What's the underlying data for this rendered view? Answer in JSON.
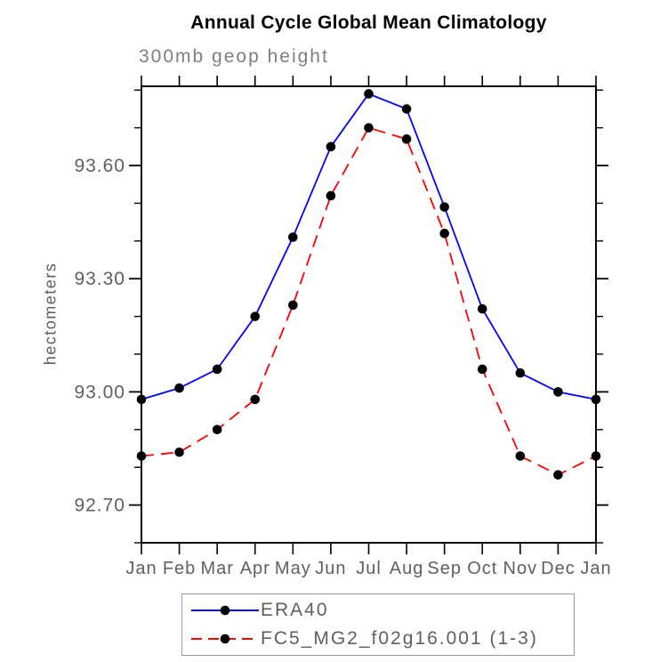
{
  "chart_data": {
    "type": "line",
    "title": "Annual Cycle Global Mean Climatology",
    "subtitle": "300mb geop height",
    "xlabel": "",
    "ylabel": "hectometers",
    "categories": [
      "Jan",
      "Feb",
      "Mar",
      "Apr",
      "May",
      "Jun",
      "Jul",
      "Aug",
      "Sep",
      "Oct",
      "Nov",
      "Dec",
      "Jan"
    ],
    "series": [
      {
        "name": "ERA40",
        "color": "#0000ff",
        "line_style": "solid",
        "marker": "circle",
        "marker_color": "#000000",
        "values": [
          92.98,
          93.01,
          93.06,
          93.2,
          93.41,
          93.65,
          93.79,
          93.75,
          93.49,
          93.22,
          93.05,
          93.0,
          92.98
        ]
      },
      {
        "name": "FC5_MG2_f02g16.001 (1-3)",
        "color": "#ff0000",
        "line_style": "dashed",
        "marker": "circle",
        "marker_color": "#000000",
        "values": [
          92.83,
          92.84,
          92.9,
          92.98,
          93.23,
          93.52,
          93.7,
          93.67,
          93.42,
          93.06,
          92.83,
          92.78,
          92.83
        ]
      }
    ],
    "ylim": [
      92.6,
      93.81
    ],
    "yticks_major": [
      92.7,
      93.0,
      93.3,
      93.6
    ],
    "ytick_labels": [
      "92.70",
      "93.00",
      "93.30",
      "93.60"
    ],
    "ytick_minor_interval": 0.1,
    "grid": false,
    "legend_position": "bottom-center",
    "legend_entries": [
      "ERA40",
      "FC5_MG2_f02g16.001 (1-3)"
    ],
    "axis_color": "#000000",
    "label_color": "#5f5f5f"
  }
}
